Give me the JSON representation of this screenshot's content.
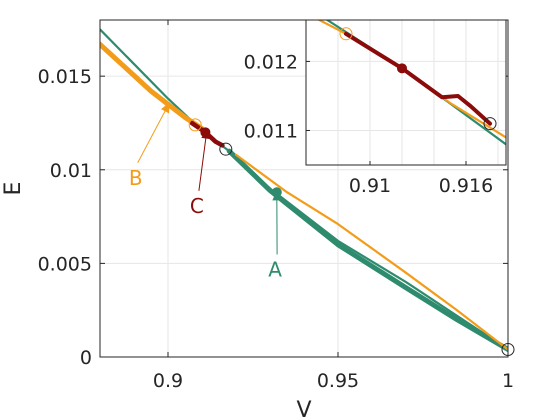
{
  "chart_data": {
    "type": "line",
    "xlabel": "V",
    "ylabel": "E",
    "xlim": [
      0.88,
      1.0
    ],
    "ylim": [
      0,
      0.018
    ],
    "grid": true,
    "legend": "none",
    "x_ticks": [
      {
        "value": 0.9,
        "label": "0.9"
      },
      {
        "value": 0.95,
        "label": "0.95"
      },
      {
        "value": 1.0,
        "label": "1"
      }
    ],
    "y_ticks": [
      {
        "value": 0,
        "label": "0"
      },
      {
        "value": 0.005,
        "label": "0.005"
      },
      {
        "value": 0.01,
        "label": "0.01"
      },
      {
        "value": 0.015,
        "label": "0.015"
      }
    ],
    "colors": {
      "green": "#2e8b6e",
      "orange": "#f39c1a",
      "darkred": "#8b0a0a",
      "gridline": "#e6e6e6",
      "axis": "#262626"
    },
    "series": [
      {
        "key": "green",
        "color": "#2e8b6e",
        "width": 2.2,
        "points": [
          [
            0.88,
            0.0175
          ],
          [
            0.9,
            0.0138
          ],
          [
            0.91,
            0.0121
          ],
          [
            0.918,
            0.011
          ],
          [
            0.93,
            0.009
          ],
          [
            0.95,
            0.0062
          ],
          [
            0.97,
            0.004
          ],
          [
            0.985,
            0.0022
          ],
          [
            1.0,
            0.0004
          ]
        ]
      },
      {
        "key": "green-thick",
        "color": "#2e8b6e",
        "width": 5,
        "points": [
          [
            0.918,
            0.011
          ],
          [
            0.93,
            0.0089
          ],
          [
            0.95,
            0.006
          ],
          [
            0.97,
            0.0037
          ],
          [
            0.985,
            0.002
          ],
          [
            1.0,
            0.0004
          ]
        ]
      },
      {
        "key": "orange",
        "color": "#f39c1a",
        "width": 2.2,
        "points": [
          [
            0.92,
            0.0108
          ],
          [
            0.935,
            0.0088
          ],
          [
            0.95,
            0.0071
          ],
          [
            0.97,
            0.0045
          ],
          [
            0.985,
            0.0025
          ],
          [
            1.0,
            0.0004
          ]
        ]
      },
      {
        "key": "orange-thick",
        "color": "#f39c1a",
        "width": 5,
        "points": [
          [
            0.88,
            0.0167
          ],
          [
            0.895,
            0.0142
          ],
          [
            0.905,
            0.0128
          ],
          [
            0.91,
            0.0122
          ]
        ]
      },
      {
        "key": "darkred",
        "color": "#8b0a0a",
        "width": 4.5,
        "points": [
          [
            0.907,
            0.0125
          ],
          [
            0.911,
            0.012
          ],
          [
            0.914,
            0.0115
          ],
          [
            0.916,
            0.0113
          ]
        ]
      }
    ],
    "markers": [
      {
        "x": 0.908,
        "y": 0.0124,
        "kind": "circle-open",
        "color": "#f39c1a"
      },
      {
        "x": 0.917,
        "y": 0.0111,
        "kind": "circle-open",
        "color": "#262626"
      },
      {
        "x": 0.911,
        "y": 0.012,
        "kind": "dot",
        "color": "#8b0a0a"
      },
      {
        "x": 0.932,
        "y": 0.0088,
        "kind": "dot",
        "color": "#2e8b6e"
      },
      {
        "x": 1.0,
        "y": 0.0004,
        "kind": "circle-open",
        "color": "#262626"
      }
    ],
    "annotations": [
      {
        "text": "A",
        "color": "#2e8b6e",
        "text_x": 0.9315,
        "text_y": 0.0043,
        "arrow_to": [
          0.932,
          0.0089
        ]
      },
      {
        "text": "B",
        "color": "#f39c1a",
        "text_x": 0.8905,
        "text_y": 0.0092,
        "arrow_to": [
          0.9005,
          0.0136
        ]
      },
      {
        "text": "C",
        "color": "#8b0a0a",
        "text_x": 0.9085,
        "text_y": 0.0077,
        "arrow_to": [
          0.9115,
          0.0122
        ]
      }
    ],
    "inset": {
      "xlim": [
        0.906,
        0.9185
      ],
      "ylim": [
        0.0105,
        0.0126
      ],
      "x_ticks": [
        {
          "value": 0.91,
          "label": "0.91"
        },
        {
          "value": 0.916,
          "label": "0.916"
        }
      ],
      "y_ticks": [
        {
          "value": 0.011,
          "label": "0.011"
        },
        {
          "value": 0.012,
          "label": "0.012"
        }
      ],
      "series": [
        {
          "key": "green",
          "color": "#2e8b6e",
          "width": 2.2,
          "points": [
            [
              0.906,
              0.0128
            ],
            [
              0.912,
              0.0119
            ],
            [
              0.9185,
              0.0108
            ]
          ]
        },
        {
          "key": "orange",
          "color": "#f39c1a",
          "width": 2.2,
          "points": [
            [
              0.906,
              0.0127
            ],
            [
              0.9085,
              0.0124
            ],
            [
              0.912,
              0.0119
            ],
            [
              0.915,
              0.0114
            ],
            [
              0.9185,
              0.0109
            ]
          ]
        },
        {
          "key": "darkred",
          "color": "#8b0a0a",
          "width": 4,
          "points": [
            [
              0.9085,
              0.0124
            ],
            [
              0.912,
              0.0119
            ],
            [
              0.9145,
              0.01148
            ],
            [
              0.9155,
              0.0115
            ],
            [
              0.9163,
              0.01135
            ],
            [
              0.9175,
              0.0111
            ]
          ]
        }
      ],
      "markers": [
        {
          "x": 0.9085,
          "y": 0.0124,
          "kind": "circle-open",
          "color": "#f39c1a"
        },
        {
          "x": 0.912,
          "y": 0.0119,
          "kind": "dot",
          "color": "#8b0a0a"
        },
        {
          "x": 0.9175,
          "y": 0.0111,
          "kind": "circle-open",
          "color": "#262626"
        }
      ]
    }
  }
}
